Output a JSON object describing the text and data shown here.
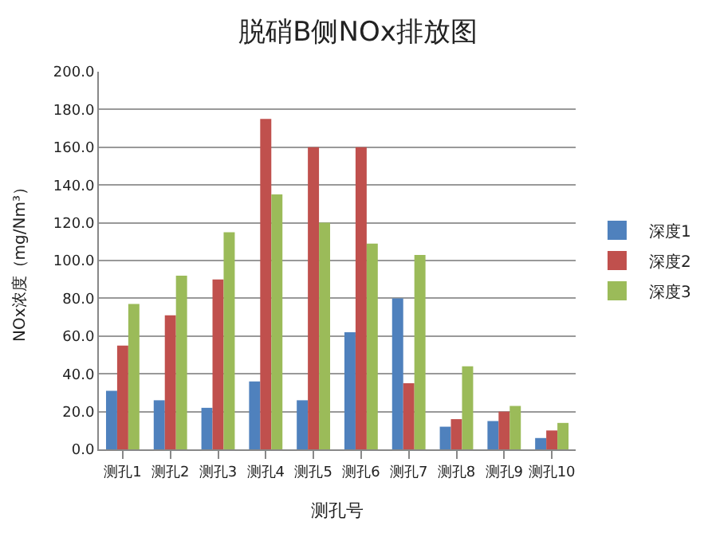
{
  "chart_data": {
    "type": "bar",
    "title": "脱硝B侧NOx排放图",
    "xlabel": "测孔号",
    "ylabel": "NOx浓度（mg/Nm³）",
    "categories": [
      "测孔1",
      "测孔2",
      "测孔3",
      "测孔4",
      "测孔5",
      "测孔6",
      "测孔7",
      "测孔8",
      "测孔9",
      "测孔10"
    ],
    "series": [
      {
        "name": "深度1",
        "color": "#4f81bd",
        "values": [
          31,
          26,
          22,
          36,
          26,
          62,
          80,
          12,
          15,
          6
        ]
      },
      {
        "name": "深度2",
        "color": "#c0504d",
        "values": [
          55,
          71,
          90,
          175,
          160,
          160,
          35,
          16,
          20,
          10
        ]
      },
      {
        "name": "深度3",
        "color": "#9bbb59",
        "values": [
          77,
          92,
          115,
          135,
          120,
          109,
          103,
          44,
          23,
          14
        ]
      }
    ],
    "ylim": [
      0,
      200
    ],
    "yticks": [
      {
        "value": 0,
        "label": "0.0"
      },
      {
        "value": 20,
        "label": "20.0"
      },
      {
        "value": 40,
        "label": "40.0"
      },
      {
        "value": 60,
        "label": "60.0"
      },
      {
        "value": 80,
        "label": "80.0"
      },
      {
        "value": 100,
        "label": "100.0"
      },
      {
        "value": 120,
        "label": "120.0"
      },
      {
        "value": 140,
        "label": "140.0"
      },
      {
        "value": 160,
        "label": "160.0"
      },
      {
        "value": 180,
        "label": "180.0"
      },
      {
        "value": 200,
        "label": "200.0"
      }
    ],
    "grid": "y",
    "legend": "right"
  }
}
